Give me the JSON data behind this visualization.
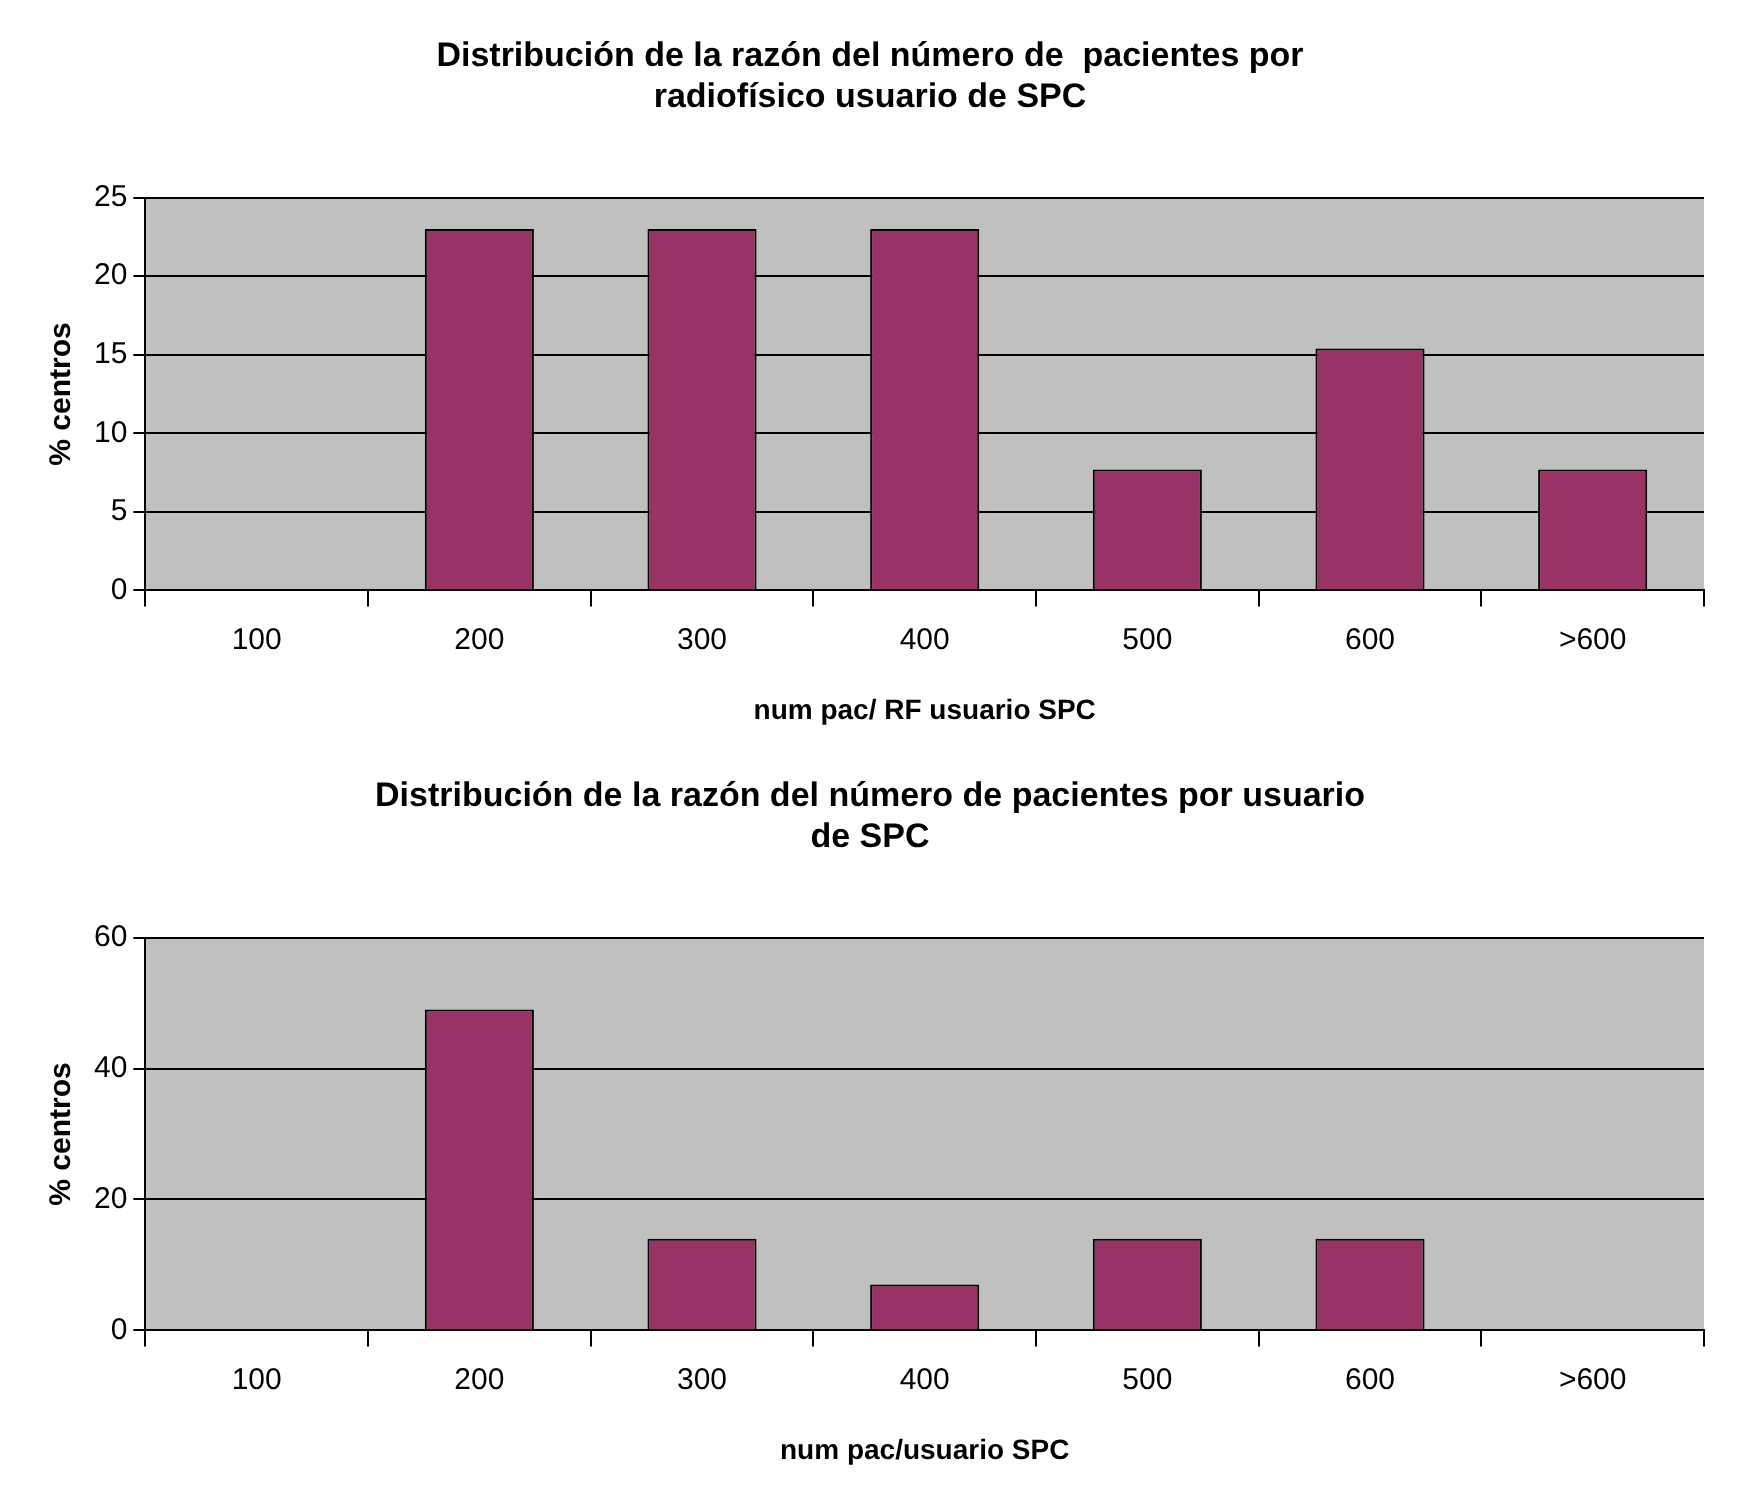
{
  "chart_data": [
    {
      "type": "bar",
      "title": "Distribución de la razón del número de  pacientes por radiofísico usuario de SPC",
      "xlabel": "num pac/ RF usuario SPC",
      "ylabel": "% centros",
      "categories": [
        "100",
        "200",
        "300",
        "400",
        "500",
        "600",
        ">600"
      ],
      "values": [
        0,
        23,
        23,
        23,
        7.7,
        15.4,
        7.7
      ],
      "color": "#993366",
      "ylim": [
        0,
        25
      ],
      "yticks": [
        0,
        5,
        10,
        15,
        20,
        25
      ],
      "grid": "y"
    },
    {
      "type": "bar",
      "title": "Distribución de la razón del número de pacientes por usuario de SPC",
      "xlabel": "num pac/usuario SPC",
      "ylabel": "% centros",
      "categories": [
        "100",
        "200",
        "300",
        "400",
        "500",
        "600",
        ">600"
      ],
      "values": [
        0,
        49,
        14,
        7,
        14,
        14,
        0
      ],
      "color": "#993366",
      "ylim": [
        0,
        60
      ],
      "yticks": [
        0,
        20,
        40,
        60
      ],
      "grid": "y"
    }
  ]
}
